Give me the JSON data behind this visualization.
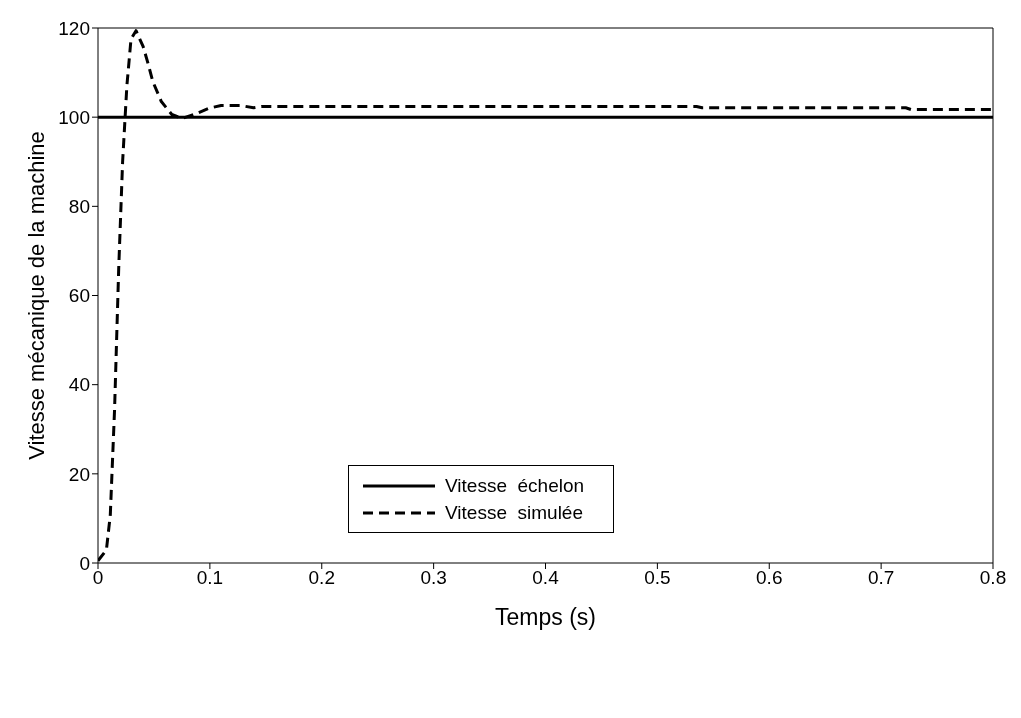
{
  "chart_data": {
    "type": "line",
    "xlabel": "Temps     (s)",
    "ylabel": "Vitesse  mécanique de la machine",
    "xlim": [
      0,
      0.8
    ],
    "xticks": [
      0,
      0.1,
      0.2,
      0.3,
      0.4,
      0.5,
      0.6,
      0.7,
      0.8
    ],
    "ylim": [
      0,
      120
    ],
    "yticks": [
      0,
      20,
      40,
      60,
      80,
      100,
      120
    ],
    "grid": false,
    "legend": "bottom",
    "marker": "none",
    "series": [
      {
        "name": "Vitesse  échelon",
        "color": "#000000",
        "line_style": "solid",
        "x": [
          0,
          0.8
        ],
        "values": [
          100,
          100
        ]
      },
      {
        "name": "Vitesse  simulée",
        "color": "#000000",
        "line_style": "dashed",
        "x": [
          0,
          0.0075,
          0.011,
          0.0148,
          0.0185,
          0.022,
          0.0258,
          0.0295,
          0.034,
          0.0404,
          0.044,
          0.049,
          0.0566,
          0.066,
          0.075,
          0.088,
          0.099,
          0.11,
          0.128,
          0.139,
          0.146,
          0.535,
          0.54,
          0.722,
          0.727,
          0.8
        ],
        "values": [
          0.5,
          2.9,
          10.8,
          34.4,
          66,
          90,
          107,
          117.5,
          119.4,
          115.8,
          112.7,
          108,
          103.5,
          100.6,
          99.7,
          100.8,
          102,
          102.6,
          102.6,
          102.1,
          102.4,
          102.4,
          102.1,
          102.1,
          101.7,
          101.7
        ]
      }
    ]
  }
}
